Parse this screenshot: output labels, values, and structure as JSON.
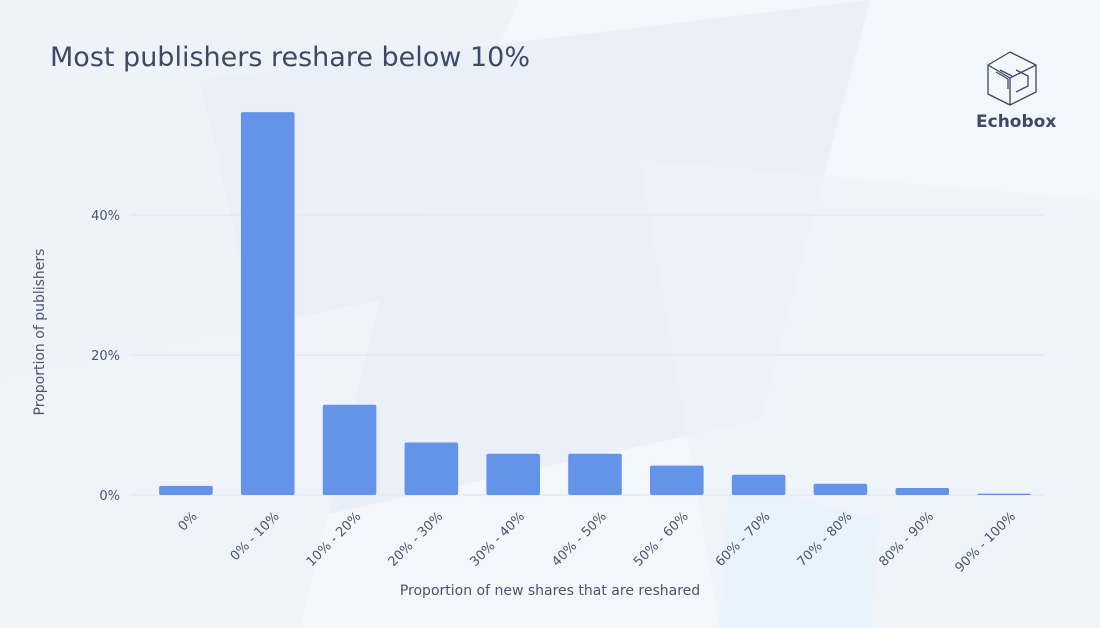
{
  "title": "Most publishers reshare below 10%",
  "brand": {
    "name": "Echobox",
    "logo_icon": "echobox-cube-icon"
  },
  "colors": {
    "bar": "#6394ea",
    "grid": "#dfe5ee",
    "text": "#3c4a66",
    "background": "#f3f6fb"
  },
  "chart_data": {
    "type": "bar",
    "title": "Most publishers reshare below 10%",
    "xlabel": "Proportion of new shares that are reshared",
    "ylabel": "Proportion of publishers",
    "categories": [
      "0%",
      "0% - 10%",
      "10% - 20%",
      "20% - 30%",
      "30% - 40%",
      "40% - 50%",
      "50% - 60%",
      "60% - 70%",
      "70% - 80%",
      "80% - 90%",
      "90% - 100%"
    ],
    "values": [
      1.3,
      54.7,
      12.9,
      7.5,
      5.9,
      5.9,
      4.2,
      2.9,
      1.6,
      1.0,
      0.2
    ],
    "ylim": [
      0,
      55
    ],
    "yticks": [
      {
        "value": 0,
        "label": "0%"
      },
      {
        "value": 20,
        "label": "20%"
      },
      {
        "value": 40,
        "label": "40%"
      }
    ],
    "grid": true,
    "legend": "none"
  }
}
